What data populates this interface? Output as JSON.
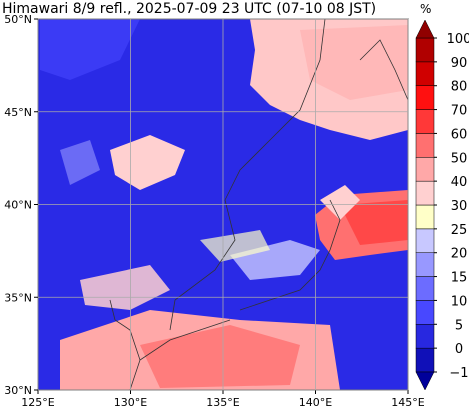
{
  "title": "Himawari 8/9 refl., 2025-07-09 23 UTC (07-10 08 JST)",
  "map": {
    "lonlim": [
      125,
      145
    ],
    "latlim": [
      30,
      50
    ],
    "lon_ticks": [
      {
        "value": 125,
        "label": "125°E"
      },
      {
        "value": 130,
        "label": "130°E"
      },
      {
        "value": 135,
        "label": "135°E"
      },
      {
        "value": 140,
        "label": "140°E"
      },
      {
        "value": 145,
        "label": "145°E"
      }
    ],
    "lat_ticks": [
      {
        "value": 30,
        "label": "30°N"
      },
      {
        "value": 35,
        "label": "35°N"
      },
      {
        "value": 40,
        "label": "40°N"
      },
      {
        "value": 45,
        "label": "45°N"
      },
      {
        "value": 50,
        "label": "50°N"
      }
    ],
    "grid": true
  },
  "colorbar": {
    "unit": "%",
    "ticks": [
      {
        "value": -1,
        "label": "−1"
      },
      0,
      5,
      10,
      15,
      20,
      25,
      30,
      40,
      50,
      60,
      70,
      80,
      90,
      100
    ],
    "colors": [
      "#1010b8",
      "#2828e0",
      "#4848ff",
      "#6c6cff",
      "#9898ff",
      "#c8c8ff",
      "#ffffc8",
      "#ffd0d0",
      "#ffa8a8",
      "#ff7070",
      "#ff3838",
      "#ff1010",
      "#d00000",
      "#b00000"
    ],
    "under_color": "#00009a",
    "over_color": "#900000"
  }
}
